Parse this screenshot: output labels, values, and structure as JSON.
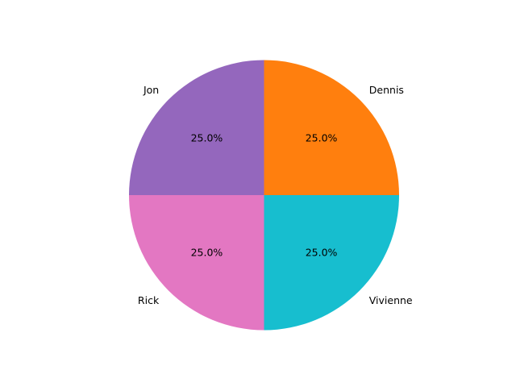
{
  "chart_data": {
    "type": "pie",
    "title": "",
    "start_angle_deg": 0,
    "direction": "counterclockwise",
    "slices": [
      {
        "label": "Dennis",
        "value": 25,
        "pct_label": "25.0%",
        "color": "#ff7f0e"
      },
      {
        "label": "Jon",
        "value": 25,
        "pct_label": "25.0%",
        "color": "#9467bd"
      },
      {
        "label": "Rick",
        "value": 25,
        "pct_label": "25.0%",
        "color": "#e377c2"
      },
      {
        "label": "Vivienne",
        "value": 25,
        "pct_label": "25.0%",
        "color": "#17becf"
      }
    ]
  }
}
